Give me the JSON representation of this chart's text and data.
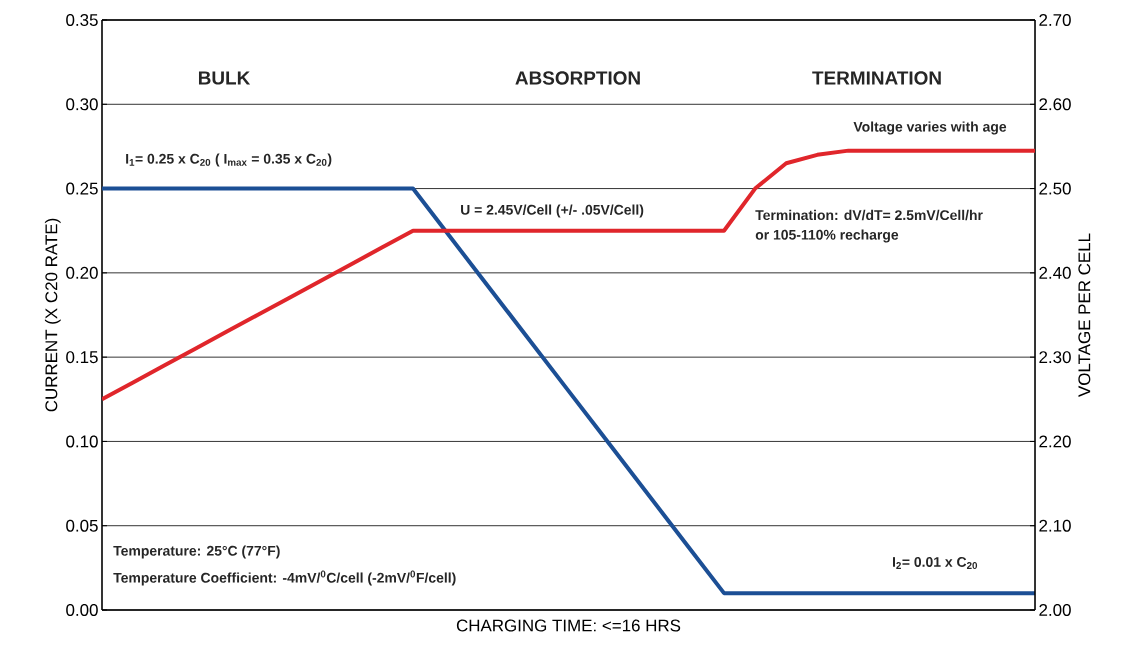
{
  "chart_data": {
    "type": "line",
    "xlabel": "CHARGING TIME: <=16 HRS",
    "ylabel": "CURRENT (X C20 RATE)",
    "y2label": "VOLTAGE PER CELL",
    "categories": [
      null,
      null,
      null,
      null,
      null,
      null,
      null,
      null,
      null,
      null,
      null,
      null,
      null,
      null,
      null,
      null,
      null,
      null,
      null,
      null,
      null,
      null,
      null,
      null,
      null,
      null,
      null,
      null,
      null,
      null,
      null
    ],
    "series": [
      {
        "color": "#1c4f95",
        "values": [
          0.25,
          0.25,
          0.25,
          0.25,
          0.25,
          0.25,
          0.25,
          0.25,
          0.25,
          0.25,
          0.25,
          0.226,
          0.202,
          0.178,
          0.154,
          0.13,
          0.106,
          0.082,
          0.058,
          0.034,
          0.01,
          0.01,
          0.01,
          0.01,
          0.01,
          0.01,
          0.01,
          0.01,
          0.01,
          0.01,
          0.01
        ]
      },
      {
        "color": "#e0262b",
        "axis": "y2",
        "values": [
          2.25,
          2.27,
          2.29,
          2.31,
          2.33,
          2.35,
          2.37,
          2.39,
          2.41,
          2.43,
          2.45,
          2.45,
          2.45,
          2.45,
          2.45,
          2.45,
          2.45,
          2.45,
          2.45,
          2.45,
          2.45,
          2.5,
          2.53,
          2.54,
          2.545,
          2.545,
          2.545,
          2.545,
          2.545,
          2.545,
          2.545
        ]
      }
    ],
    "ylim": [
      0,
      0.35
    ],
    "yticks": [
      {
        "value": 0,
        "label": "0.00"
      },
      {
        "value": 0.05,
        "label": "0.05"
      },
      {
        "value": 0.1,
        "label": "0.10"
      },
      {
        "value": 0.15,
        "label": "0.15"
      },
      {
        "value": 0.2,
        "label": "0.20"
      },
      {
        "value": 0.25,
        "label": "0.25"
      },
      {
        "value": 0.3,
        "label": "0.30"
      },
      {
        "value": 0.35,
        "label": "0.35"
      }
    ],
    "y2lim": [
      2.0,
      2.7
    ],
    "y2ticks": [
      {
        "value": 2.0,
        "label": "2.00"
      },
      {
        "value": 2.1,
        "label": "2.10"
      },
      {
        "value": 2.2,
        "label": "2.20"
      },
      {
        "value": 2.3,
        "label": "2.30"
      },
      {
        "value": 2.4,
        "label": "2.40"
      },
      {
        "value": 2.5,
        "label": "2.50"
      },
      {
        "value": 2.6,
        "label": "2.60"
      },
      {
        "value": 2.7,
        "label": "2.70"
      }
    ],
    "grid": "y",
    "tick_labels": "y",
    "annotations": [
      "BULK",
      "ABSORPTION",
      "TERMINATION",
      "I$_{1}$= 0.25 x C$_{20}$ ( I$_{max}$ = 0.35 x C$_{20}$)",
      "U = 2.45V/Cell (+/- .05V/Cell)",
      "Voltage varies with age",
      "Termination: dV/dT= 2.5mV/Cell/hr",
      "or 105-110% recharge",
      "Temperature: 25°C (77°F)",
      "Temperature Coefficient: -4mV/$^{0}$C/cell (-2mV/$^{0}$F/cell)",
      "I$_{2}$= 0.01 x C$_{20}$"
    ]
  }
}
